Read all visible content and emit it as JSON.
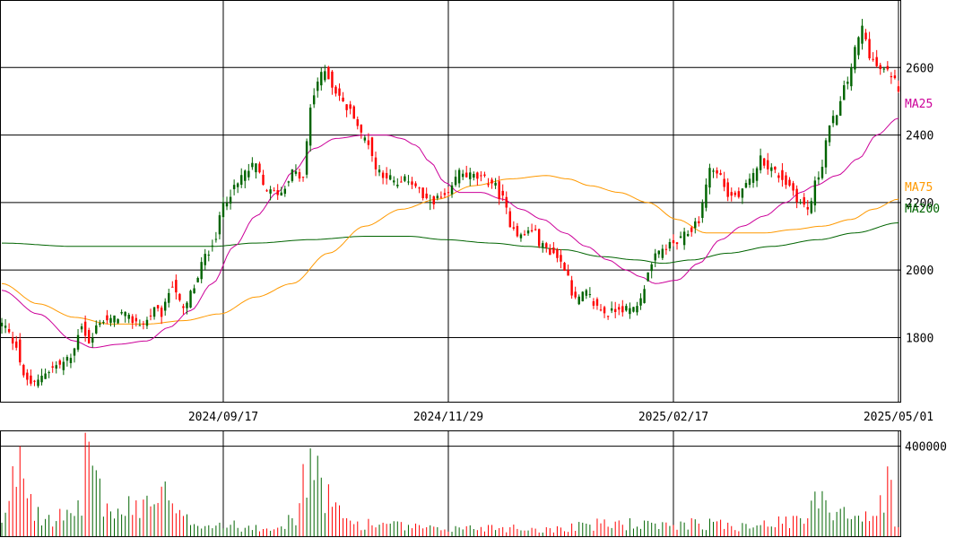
{
  "chart_data": {
    "type": "candlestick",
    "title": "",
    "colors": {
      "up": "#006400",
      "down": "#ff0000",
      "ma25": "#cc0099",
      "ma75": "#ff9900",
      "ma200": "#006400",
      "grid": "#000000",
      "volume_up": "#006400",
      "volume_down": "#ff0000"
    },
    "price_axis": {
      "ylim": [
        1610,
        2800
      ],
      "ticks": [
        1800,
        2000,
        2200,
        2400,
        2600
      ]
    },
    "volume_axis": {
      "ylim": [
        0,
        470000
      ],
      "ticks": [
        400000
      ],
      "tick_labels": [
        "400000"
      ]
    },
    "x_ticks": [
      {
        "index": 61,
        "label": "2024/09/17"
      },
      {
        "index": 123,
        "label": "2024/11/29"
      },
      {
        "index": 185,
        "label": "2025/02/17"
      },
      {
        "index": 247,
        "label": "2025/05/01"
      }
    ],
    "ma_labels": {
      "ma25": "MA25",
      "ma75": "MA75",
      "ma200": "MA200"
    },
    "anchors": {
      "close": [
        [
          0,
          1840
        ],
        [
          4,
          1780
        ],
        [
          6,
          1680
        ],
        [
          9,
          1660
        ],
        [
          12,
          1700
        ],
        [
          16,
          1720
        ],
        [
          19,
          1740
        ],
        [
          22,
          1840
        ],
        [
          24,
          1780
        ],
        [
          27,
          1850
        ],
        [
          30,
          1850
        ],
        [
          33,
          1870
        ],
        [
          36,
          1850
        ],
        [
          39,
          1840
        ],
        [
          42,
          1880
        ],
        [
          44,
          1870
        ],
        [
          47,
          1960
        ],
        [
          50,
          1880
        ],
        [
          53,
          1950
        ],
        [
          56,
          2040
        ],
        [
          59,
          2100
        ],
        [
          61,
          2200
        ],
        [
          64,
          2240
        ],
        [
          67,
          2290
        ],
        [
          70,
          2310
        ],
        [
          72,
          2250
        ],
        [
          74,
          2230
        ],
        [
          77,
          2230
        ],
        [
          80,
          2290
        ],
        [
          83,
          2270
        ],
        [
          85,
          2480
        ],
        [
          87,
          2560
        ],
        [
          89,
          2590
        ],
        [
          92,
          2530
        ],
        [
          95,
          2480
        ],
        [
          97,
          2460
        ],
        [
          99,
          2400
        ],
        [
          101,
          2380
        ],
        [
          103,
          2300
        ],
        [
          106,
          2280
        ],
        [
          109,
          2250
        ],
        [
          112,
          2270
        ],
        [
          114,
          2250
        ],
        [
          117,
          2200
        ],
        [
          120,
          2210
        ],
        [
          123,
          2220
        ],
        [
          126,
          2290
        ],
        [
          129,
          2280
        ],
        [
          132,
          2270
        ],
        [
          135,
          2260
        ],
        [
          138,
          2210
        ],
        [
          140,
          2140
        ],
        [
          143,
          2100
        ],
        [
          146,
          2120
        ],
        [
          149,
          2070
        ],
        [
          152,
          2050
        ],
        [
          155,
          2010
        ],
        [
          158,
          1910
        ],
        [
          161,
          1930
        ],
        [
          164,
          1890
        ],
        [
          167,
          1870
        ],
        [
          170,
          1890
        ],
        [
          173,
          1880
        ],
        [
          176,
          1910
        ],
        [
          178,
          2000
        ],
        [
          181,
          2050
        ],
        [
          183,
          2070
        ],
        [
          186,
          2080
        ],
        [
          189,
          2110
        ],
        [
          192,
          2150
        ],
        [
          195,
          2300
        ],
        [
          198,
          2280
        ],
        [
          200,
          2220
        ],
        [
          203,
          2220
        ],
        [
          206,
          2260
        ],
        [
          209,
          2330
        ],
        [
          212,
          2300
        ],
        [
          214,
          2280
        ],
        [
          217,
          2250
        ],
        [
          220,
          2200
        ],
        [
          222,
          2180
        ],
        [
          225,
          2280
        ],
        [
          228,
          2420
        ],
        [
          230,
          2470
        ],
        [
          233,
          2560
        ],
        [
          235,
          2650
        ],
        [
          237,
          2720
        ],
        [
          239,
          2640
        ],
        [
          241,
          2600
        ],
        [
          243,
          2590
        ],
        [
          245,
          2580
        ],
        [
          247,
          2540
        ]
      ],
      "ma25": [
        [
          0,
          1940
        ],
        [
          10,
          1870
        ],
        [
          20,
          1790
        ],
        [
          25,
          1770
        ],
        [
          32,
          1780
        ],
        [
          40,
          1790
        ],
        [
          46,
          1830
        ],
        [
          52,
          1880
        ],
        [
          58,
          1960
        ],
        [
          64,
          2070
        ],
        [
          70,
          2160
        ],
        [
          76,
          2230
        ],
        [
          80,
          2290
        ],
        [
          86,
          2360
        ],
        [
          92,
          2390
        ],
        [
          100,
          2400
        ],
        [
          106,
          2400
        ],
        [
          110,
          2390
        ],
        [
          114,
          2370
        ],
        [
          118,
          2320
        ],
        [
          122,
          2260
        ],
        [
          126,
          2230
        ],
        [
          132,
          2230
        ],
        [
          138,
          2210
        ],
        [
          143,
          2180
        ],
        [
          149,
          2150
        ],
        [
          155,
          2110
        ],
        [
          161,
          2070
        ],
        [
          167,
          2030
        ],
        [
          172,
          2000
        ],
        [
          176,
          1980
        ],
        [
          180,
          1960
        ],
        [
          186,
          1970
        ],
        [
          192,
          2020
        ],
        [
          198,
          2090
        ],
        [
          204,
          2130
        ],
        [
          210,
          2160
        ],
        [
          216,
          2200
        ],
        [
          220,
          2230
        ],
        [
          224,
          2250
        ],
        [
          230,
          2280
        ],
        [
          236,
          2330
        ],
        [
          241,
          2400
        ],
        [
          247,
          2450
        ]
      ],
      "ma75": [
        [
          0,
          1960
        ],
        [
          10,
          1900
        ],
        [
          20,
          1860
        ],
        [
          30,
          1840
        ],
        [
          40,
          1840
        ],
        [
          50,
          1850
        ],
        [
          60,
          1870
        ],
        [
          70,
          1920
        ],
        [
          80,
          1960
        ],
        [
          90,
          2050
        ],
        [
          100,
          2130
        ],
        [
          110,
          2180
        ],
        [
          120,
          2210
        ],
        [
          130,
          2250
        ],
        [
          140,
          2270
        ],
        [
          150,
          2280
        ],
        [
          156,
          2270
        ],
        [
          162,
          2250
        ],
        [
          170,
          2230
        ],
        [
          178,
          2200
        ],
        [
          186,
          2150
        ],
        [
          194,
          2110
        ],
        [
          202,
          2110
        ],
        [
          210,
          2110
        ],
        [
          218,
          2120
        ],
        [
          226,
          2130
        ],
        [
          234,
          2150
        ],
        [
          240,
          2180
        ],
        [
          247,
          2210
        ]
      ],
      "ma200": [
        [
          0,
          2080
        ],
        [
          20,
          2070
        ],
        [
          40,
          2070
        ],
        [
          58,
          2070
        ],
        [
          70,
          2080
        ],
        [
          85,
          2090
        ],
        [
          100,
          2100
        ],
        [
          112,
          2100
        ],
        [
          122,
          2090
        ],
        [
          135,
          2080
        ],
        [
          145,
          2070
        ],
        [
          155,
          2060
        ],
        [
          165,
          2040
        ],
        [
          175,
          2030
        ],
        [
          182,
          2020
        ],
        [
          190,
          2030
        ],
        [
          200,
          2050
        ],
        [
          212,
          2070
        ],
        [
          225,
          2090
        ],
        [
          235,
          2110
        ],
        [
          247,
          2140
        ]
      ]
    },
    "volume_anchors": [
      [
        0,
        60000
      ],
      [
        5,
        400000
      ],
      [
        10,
        130000
      ],
      [
        20,
        90000
      ],
      [
        24,
        420000
      ],
      [
        30,
        110000
      ],
      [
        40,
        180000
      ],
      [
        44,
        220000
      ],
      [
        50,
        90000
      ],
      [
        60,
        60000
      ],
      [
        70,
        50000
      ],
      [
        80,
        80000
      ],
      [
        85,
        390000
      ],
      [
        88,
        260000
      ],
      [
        95,
        80000
      ],
      [
        105,
        60000
      ],
      [
        120,
        40000
      ],
      [
        135,
        50000
      ],
      [
        150,
        40000
      ],
      [
        160,
        60000
      ],
      [
        170,
        70000
      ],
      [
        185,
        50000
      ],
      [
        190,
        80000
      ],
      [
        200,
        60000
      ],
      [
        210,
        70000
      ],
      [
        220,
        80000
      ],
      [
        226,
        200000
      ],
      [
        232,
        130000
      ],
      [
        240,
        90000
      ],
      [
        244,
        310000
      ],
      [
        247,
        40000
      ]
    ]
  }
}
